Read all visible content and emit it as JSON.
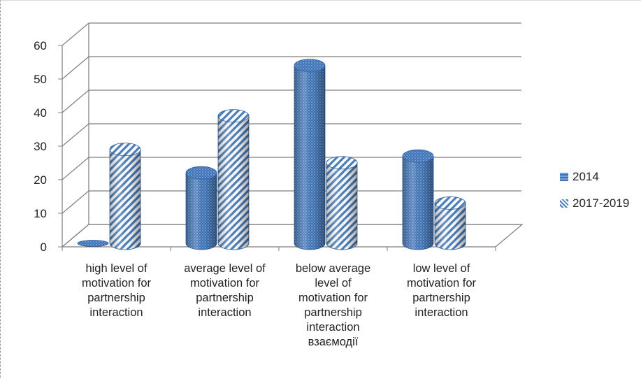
{
  "chart_data": {
    "type": "bar",
    "style": "3d-cylinder",
    "categories": [
      "high level of\nmotivation for\npartnership\ninteraction",
      "average level of\nmotivation for\npartnership\ninteraction",
      "below average\nlevel of\nmotivation  for\npartnership\ninteraction\nвзаємодії",
      "low level of\nmotivation for\npartnership\ninteraction"
    ],
    "series": [
      {
        "name": "2014",
        "values": [
          0,
          21,
          53,
          26
        ],
        "color": "#4a7ebb",
        "pattern": "dotted"
      },
      {
        "name": "2017-2019",
        "values": [
          28,
          38,
          24,
          12
        ],
        "color": "#4a7ebb",
        "pattern": "diagonal-stripes"
      }
    ],
    "ylim": [
      0,
      60
    ],
    "yticks": [
      "0",
      "10",
      "20",
      "30",
      "40",
      "50",
      "60"
    ],
    "grid": true,
    "legend_position": "right",
    "title": "",
    "xlabel": "",
    "ylabel": ""
  }
}
